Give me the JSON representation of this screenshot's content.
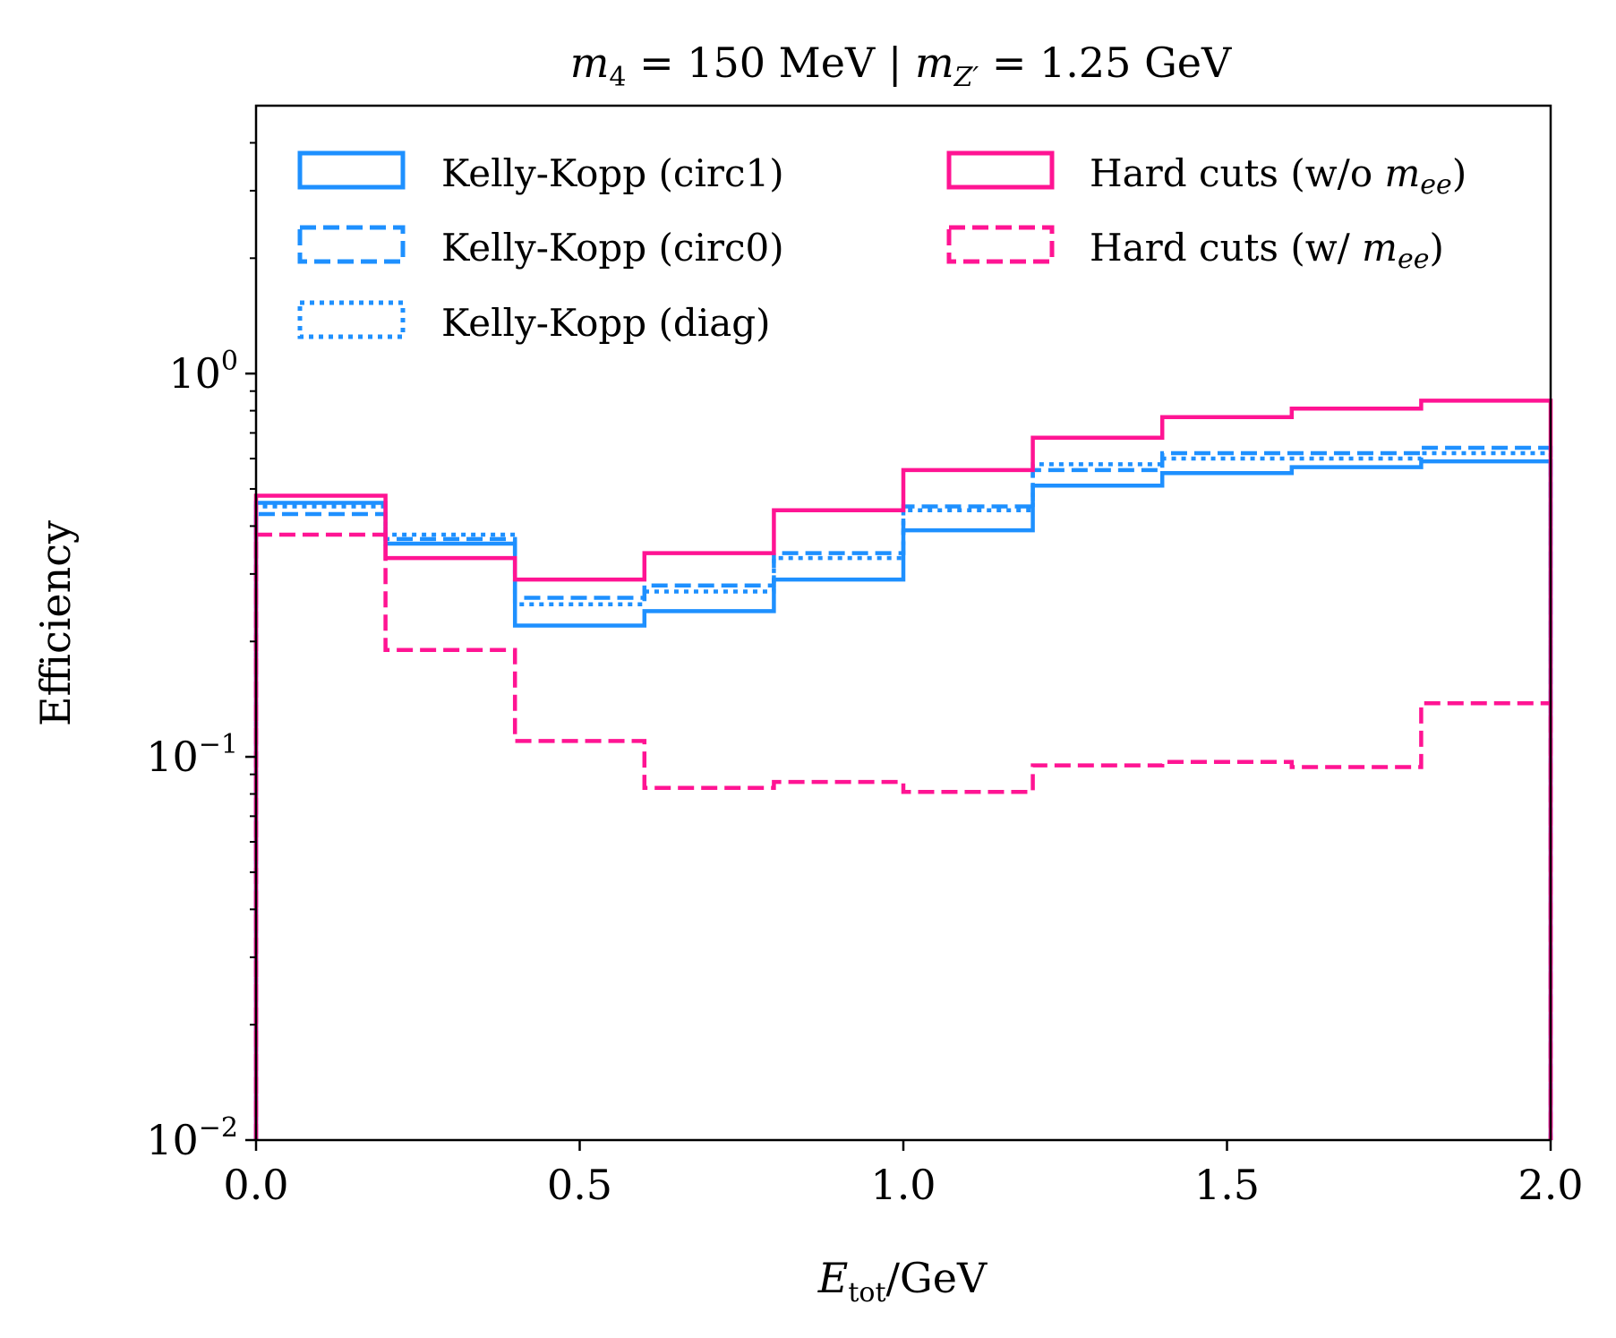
{
  "chart_data": {
    "type": "line",
    "step": true,
    "title": "m₄ = 150 MeV | m_Z′ = 1.25 GeV",
    "xlabel": "E_tot/GeV",
    "ylabel": "Efficiency",
    "yscale": "log",
    "xlim": [
      0.0,
      2.0
    ],
    "ylim": [
      0.01,
      5.0
    ],
    "grid": false,
    "legend_position": "top",
    "legend_columns": 2,
    "x_ticks": [
      {
        "value": 0.0,
        "label": "0.0"
      },
      {
        "value": 0.5,
        "label": "0.5"
      },
      {
        "value": 1.0,
        "label": "1.0"
      },
      {
        "value": 1.5,
        "label": "1.5"
      },
      {
        "value": 2.0,
        "label": "2.0"
      }
    ],
    "y_ticks": [
      {
        "value": 0.01,
        "base": "10",
        "exp": "−2"
      },
      {
        "value": 0.1,
        "base": "10",
        "exp": "−1"
      },
      {
        "value": 1.0,
        "base": "10",
        "exp": "0"
      }
    ],
    "bin_edges": [
      0.0,
      0.2,
      0.4,
      0.6,
      0.8,
      1.0,
      1.2,
      1.4,
      1.6,
      1.8,
      2.0
    ],
    "series": [
      {
        "name": "Kelly-Kopp (circ1)",
        "color": "#1E90FF",
        "style": "solid",
        "values": [
          0.46,
          0.36,
          0.22,
          0.24,
          0.29,
          0.39,
          0.51,
          0.55,
          0.57,
          0.59
        ]
      },
      {
        "name": "Kelly-Kopp (circ0)",
        "color": "#1E90FF",
        "style": "dashed",
        "values": [
          0.43,
          0.37,
          0.26,
          0.28,
          0.34,
          0.45,
          0.56,
          0.62,
          0.62,
          0.64
        ]
      },
      {
        "name": "Kelly-Kopp (diag)",
        "color": "#1E90FF",
        "style": "dotted",
        "values": [
          0.45,
          0.38,
          0.25,
          0.27,
          0.33,
          0.44,
          0.58,
          0.6,
          0.6,
          0.62
        ]
      },
      {
        "name": "Hard cuts (w/o m_ee)",
        "color": "#FF1493",
        "style": "solid",
        "values": [
          0.48,
          0.33,
          0.29,
          0.34,
          0.44,
          0.56,
          0.68,
          0.77,
          0.81,
          0.85
        ]
      },
      {
        "name": "Hard cuts (w/ m_ee)",
        "color": "#FF1493",
        "style": "dashed",
        "values": [
          0.38,
          0.19,
          0.11,
          0.083,
          0.086,
          0.081,
          0.095,
          0.097,
          0.094,
          0.138
        ]
      }
    ]
  },
  "title_parts": {
    "m": "m",
    "m_sub": "4",
    "mid": " = 150 MeV | ",
    "mz": "m",
    "mz_sub": "Z′",
    "end": " = 1.25 GeV"
  },
  "xlabel_parts": {
    "main": "E",
    "sub": "tot",
    "rest": "/GeV"
  },
  "legend_parts": {
    "hard_wo_prefix": "Hard cuts (w/o ",
    "hard_w_prefix": "Hard cuts (w/ ",
    "m": "m",
    "m_sub": "ee",
    "close": ")"
  }
}
